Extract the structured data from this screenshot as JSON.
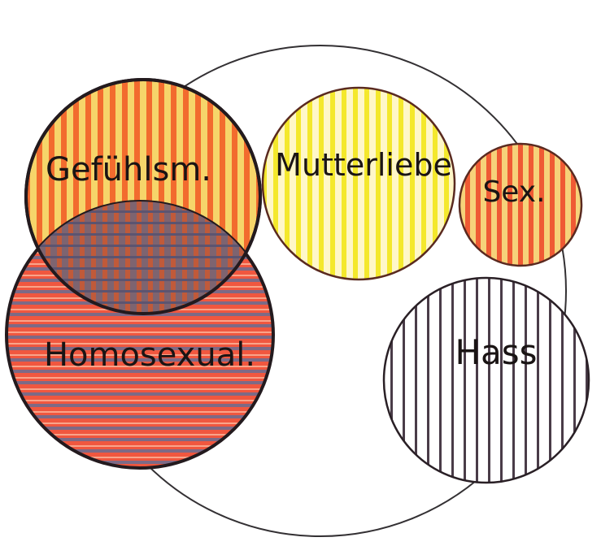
{
  "circles": [
    {
      "key": "gefuehl",
      "label": "Gefühlsm.",
      "pattern": "vertical",
      "colors": [
        "#f26b2e",
        "#f6d56a"
      ]
    },
    {
      "key": "mutter",
      "label": "Mutterliebe",
      "pattern": "vertical",
      "colors": [
        "#f4e82c",
        "#fffbe0"
      ]
    },
    {
      "key": "sex",
      "label": "Sex.",
      "pattern": "vertical",
      "colors": [
        "#ef5a34",
        "#f6d27a"
      ]
    },
    {
      "key": "homo",
      "label": "Homosexual.",
      "pattern": "horizontal",
      "colors": [
        "#f0573f",
        "#7d6a86"
      ]
    },
    {
      "key": "hass",
      "label": "Hass",
      "pattern": "vertical",
      "colors": [
        "#4a3c48",
        "#ffffff"
      ]
    }
  ]
}
